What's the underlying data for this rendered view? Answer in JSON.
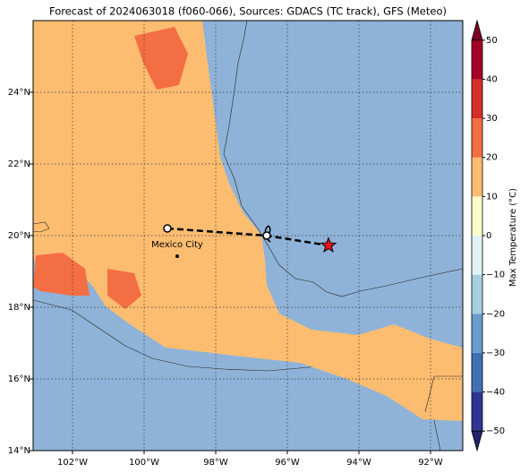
{
  "title": "Forecast of 2024063018 (f060-066), Sources: GDACS (TC track), GFS (Meteo)",
  "map": {
    "xlim": [
      -103.1,
      -91.1
    ],
    "ylim": [
      14,
      26
    ],
    "xticks": [
      {
        "value": -102,
        "label": "102°W"
      },
      {
        "value": -100,
        "label": "100°W"
      },
      {
        "value": -98,
        "label": "98°W"
      },
      {
        "value": -96,
        "label": "96°W"
      },
      {
        "value": -94,
        "label": "94°W"
      },
      {
        "value": -92,
        "label": "92°W"
      }
    ],
    "yticks": [
      {
        "value": 14,
        "label": "14°N"
      },
      {
        "value": 16,
        "label": "16°N"
      },
      {
        "value": 18,
        "label": "18°N"
      },
      {
        "value": 20,
        "label": "20°N"
      },
      {
        "value": 22,
        "label": "22°N"
      },
      {
        "value": 24,
        "label": "24°N"
      }
    ],
    "grid": true
  },
  "track": {
    "lon": [
      -99.35,
      -96.575,
      -94.85
    ],
    "lat": [
      20.2,
      20.0,
      19.725
    ],
    "color": "#e8141c"
  },
  "city": {
    "name": "Mexico City",
    "lon": -99.075,
    "lat": 19.425
  },
  "colorbar": {
    "label": "Max Temperature (°C)",
    "lim": [
      -55,
      55
    ],
    "ticks": [
      {
        "value": -50,
        "label": "−50"
      },
      {
        "value": -40,
        "label": "−40"
      },
      {
        "value": -30,
        "label": "−30"
      },
      {
        "value": -20,
        "label": "−20"
      },
      {
        "value": -10,
        "label": "−10"
      },
      0,
      10,
      20,
      30,
      40,
      50
    ],
    "colors": [
      "#303594",
      "#4170b2",
      "#6a9ccb",
      "#a6cfe4",
      "#e1f3f7",
      "#fffcc8",
      "#fdbd70",
      "#f46e43",
      "#d62f27",
      "#a50026"
    ],
    "extend_colors": [
      "#23246c",
      "#7c0020"
    ]
  }
}
